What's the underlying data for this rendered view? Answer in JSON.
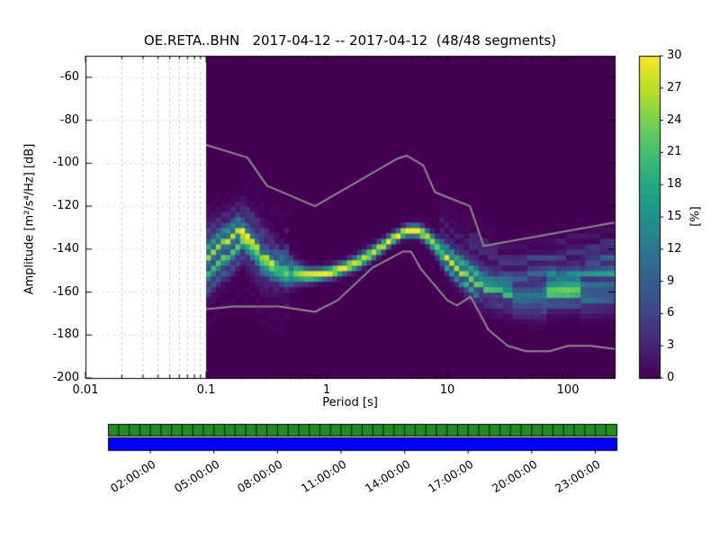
{
  "chart_data": {
    "type": "heatmap",
    "title": "OE.RETA..BHN   2017-04-12 -- 2017-04-12  (48/48 segments)",
    "xlabel": "Period [s]",
    "ylabel": "Amplitude [m²/s⁴/Hz] [dB]",
    "xscale": "log",
    "xlim": [
      0.01,
      244
    ],
    "ylim": [
      -200,
      -50
    ],
    "x_ticks": [
      "0.01",
      "0.1",
      "1",
      "10",
      "100"
    ],
    "y_ticks": [
      -60,
      -80,
      -100,
      -120,
      -140,
      -160,
      -180,
      -200
    ],
    "grid": "dashed, visible in empty region left of 0.1 s",
    "background_color": "#440154",
    "noise_model_color": "#8a8a8a",
    "data_period_range": [
      0.1,
      244
    ],
    "db_bin_width": 2.5,
    "colorbar": {
      "label": "[%]",
      "min": 0,
      "max": 30,
      "ticks": [
        0,
        3,
        6,
        9,
        12,
        15,
        18,
        21,
        24,
        27,
        30
      ],
      "colormap": "viridis",
      "stops": [
        "#440154",
        "#482475",
        "#414487",
        "#355f8d",
        "#2a788e",
        "#21918c",
        "#22a884",
        "#44bf70",
        "#7ad151",
        "#bddf26",
        "#fde725"
      ]
    },
    "mode_curve": {
      "comment": "most probable PSD value (dB) vs period (s), with peak probability (%) and spread (dB)",
      "periods": [
        0.1,
        0.13,
        0.17,
        0.2,
        0.25,
        0.3,
        0.4,
        0.55,
        0.7,
        0.9,
        1.1,
        1.4,
        1.8,
        2.2,
        2.8,
        3.5,
        4.5,
        5.5,
        6.5,
        8,
        9,
        10,
        12,
        14,
        17,
        20,
        25,
        35,
        50,
        70,
        100,
        150,
        237
      ],
      "db": [
        -146,
        -141,
        -136,
        -132,
        -138,
        -144,
        -148,
        -151,
        -152,
        -151.5,
        -150.5,
        -148.5,
        -146,
        -143,
        -139,
        -135,
        -131.5,
        -131,
        -133,
        -138,
        -142,
        -145,
        -149,
        -152,
        -155,
        -157.5,
        -159.5,
        -161,
        -160.5,
        -159.5,
        -158.5,
        -157,
        -155
      ],
      "peak_percent": [
        14,
        15,
        16,
        18,
        14,
        13,
        16,
        24,
        30,
        30,
        30,
        30,
        28,
        27,
        28,
        30,
        30,
        30,
        28,
        24,
        20,
        18,
        16,
        15,
        14,
        14,
        13,
        13,
        12,
        12,
        13,
        12,
        12
      ],
      "sigma_db": [
        9,
        8,
        7,
        6,
        7,
        7,
        5,
        3,
        2,
        1.8,
        1.8,
        1.8,
        2,
        2,
        1.8,
        1.6,
        1.6,
        1.8,
        2,
        2.5,
        3,
        3.5,
        4,
        4.5,
        5,
        5,
        5,
        5,
        5.5,
        6,
        6,
        6.5,
        7
      ]
    },
    "noise_models": {
      "high_noise_model": [
        [
          0.1,
          -91.5
        ],
        [
          0.22,
          -97.4
        ],
        [
          0.32,
          -110.5
        ],
        [
          0.8,
          -120.0
        ],
        [
          3.8,
          -98.0
        ],
        [
          4.6,
          -96.5
        ],
        [
          6.3,
          -101.0
        ],
        [
          7.9,
          -113.5
        ],
        [
          15.4,
          -120.0
        ],
        [
          20.0,
          -138.5
        ],
        [
          354.8,
          -126.0
        ]
      ],
      "low_noise_model": [
        [
          0.1,
          -168.0
        ],
        [
          0.17,
          -166.7
        ],
        [
          0.4,
          -166.7
        ],
        [
          0.8,
          -169.2
        ],
        [
          1.24,
          -163.7
        ],
        [
          2.4,
          -148.6
        ],
        [
          4.3,
          -141.1
        ],
        [
          5.0,
          -141.1
        ],
        [
          6.0,
          -149.0
        ],
        [
          10.0,
          -163.8
        ],
        [
          12.0,
          -166.2
        ],
        [
          15.6,
          -162.1
        ],
        [
          21.9,
          -177.5
        ],
        [
          31.6,
          -185.0
        ],
        [
          45.0,
          -187.5
        ],
        [
          70.0,
          -187.5
        ],
        [
          101.0,
          -185.0
        ],
        [
          154.0,
          -185.0
        ],
        [
          328.0,
          -187.5
        ]
      ]
    },
    "timeline": {
      "tick_labels": [
        "02:00:00",
        "05:00:00",
        "08:00:00",
        "11:00:00",
        "14:00:00",
        "17:00:00",
        "20:00:00",
        "23:00:00"
      ],
      "hours_span": 24,
      "n_segments": 48,
      "coverage_color": "#228b22",
      "extent_color": "#0000ff"
    }
  }
}
